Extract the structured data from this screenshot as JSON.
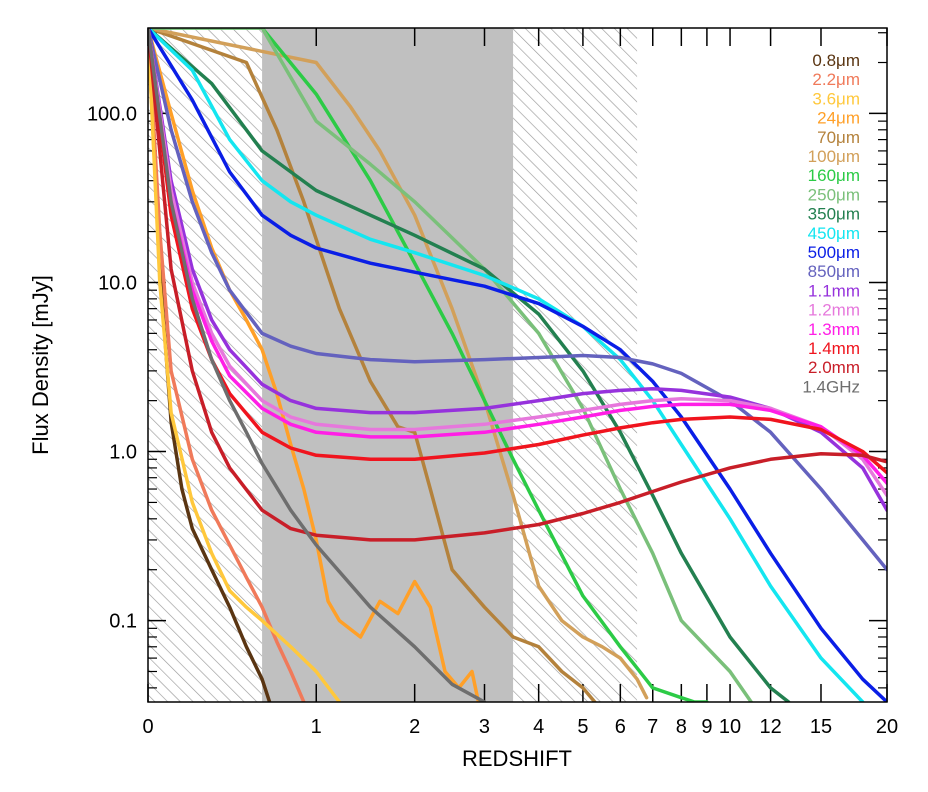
{
  "chart_data": {
    "type": "line",
    "xlabel": "REDSHIFT",
    "ylabel": "Flux Density [mJy]",
    "xscale": "log(1+z)",
    "yscale": "log",
    "xlim": [
      0,
      20
    ],
    "ylim": [
      0.033,
      320
    ],
    "x_ticks": [
      0,
      1,
      2,
      3,
      4,
      5,
      6,
      7,
      8,
      9,
      10,
      12,
      15,
      20
    ],
    "x_tick_labels": [
      "0",
      "1",
      "2",
      "3",
      "4",
      "5",
      "6",
      "7",
      "8",
      "9",
      "10",
      "12",
      "15",
      "20"
    ],
    "y_ticks": [
      0.1,
      1.0,
      10.0,
      100.0
    ],
    "y_tick_labels": [
      "0.1",
      "1.0",
      "10.0",
      "100.0"
    ],
    "shaded_regions": [
      {
        "style": "hatched",
        "z_range": [
          0,
          0.6
        ]
      },
      {
        "style": "solid-gray",
        "z_range": [
          0.6,
          3.5
        ]
      },
      {
        "style": "hatched",
        "z_range": [
          3.5,
          6.5
        ]
      }
    ],
    "legend_position": "top-right",
    "series": [
      {
        "name": "0.8μm",
        "color": "#5a3512",
        "x": [
          0,
          0.05,
          0.1,
          0.15,
          0.2,
          0.3,
          0.4,
          0.5,
          0.6,
          0.65
        ],
        "y": [
          320,
          12,
          1.5,
          0.6,
          0.35,
          0.2,
          0.12,
          0.07,
          0.045,
          0.033
        ]
      },
      {
        "name": "2.2μm",
        "color": "#f07a5a",
        "x": [
          0,
          0.05,
          0.1,
          0.2,
          0.3,
          0.4,
          0.5,
          0.6,
          0.7,
          0.8,
          0.9
        ],
        "y": [
          320,
          20,
          3,
          0.9,
          0.45,
          0.28,
          0.18,
          0.12,
          0.075,
          0.05,
          0.033
        ]
      },
      {
        "name": "3.6μm",
        "color": "#ffc83c",
        "x": [
          0,
          0.05,
          0.1,
          0.2,
          0.3,
          0.4,
          0.5,
          0.6,
          0.8,
          1.0,
          1.2
        ],
        "y": [
          320,
          10,
          1.7,
          0.5,
          0.25,
          0.15,
          0.12,
          0.1,
          0.07,
          0.05,
          0.033
        ]
      },
      {
        "name": "24μm",
        "color": "#ffa028",
        "x": [
          0,
          0.1,
          0.2,
          0.3,
          0.4,
          0.5,
          0.6,
          0.7,
          0.8,
          0.9,
          1.0,
          1.1,
          1.2,
          1.4,
          1.6,
          1.8,
          2.0,
          2.2,
          2.4,
          2.6,
          2.8,
          2.9
        ],
        "y": [
          320,
          100,
          35,
          16,
          9,
          6,
          4,
          2.2,
          1.1,
          0.6,
          0.3,
          0.13,
          0.1,
          0.08,
          0.13,
          0.11,
          0.17,
          0.12,
          0.05,
          0.04,
          0.05,
          0.033
        ]
      },
      {
        "name": "70μm",
        "color": "#b4823c",
        "x": [
          0,
          0.5,
          0.7,
          0.9,
          1.0,
          1.2,
          1.5,
          1.8,
          2.0,
          2.2,
          2.5,
          3.0,
          3.5,
          4.0,
          4.5,
          5.0,
          5.3
        ],
        "y": [
          320,
          200,
          80,
          30,
          18,
          7,
          2.6,
          1.4,
          1.3,
          0.6,
          0.2,
          0.12,
          0.08,
          0.07,
          0.05,
          0.04,
          0.033
        ]
      },
      {
        "name": "100μm",
        "color": "#d2a05a",
        "x": [
          0,
          1.0,
          1.3,
          1.6,
          2.0,
          2.5,
          3.0,
          3.5,
          4.0,
          4.5,
          5.0,
          5.5,
          6.0,
          6.5,
          6.8
        ],
        "y": [
          320,
          200,
          110,
          60,
          25,
          7,
          2.0,
          0.55,
          0.16,
          0.1,
          0.08,
          0.07,
          0.06,
          0.045,
          0.035
        ]
      },
      {
        "name": "160μm",
        "color": "#2ccb46",
        "x": [
          0,
          0.6,
          1.0,
          1.5,
          2.0,
          2.5,
          3.0,
          3.5,
          4.0,
          5.0,
          6.0,
          7.0,
          8.0,
          8.5,
          9.0
        ],
        "y": [
          320,
          320,
          130,
          40,
          13,
          5,
          2,
          0.9,
          0.45,
          0.14,
          0.07,
          0.04,
          0.035,
          0.033,
          0.033
        ]
      },
      {
        "name": "250μm",
        "color": "#7ac07a",
        "x": [
          0,
          0.6,
          1.0,
          1.5,
          2.0,
          3.0,
          4.0,
          5.0,
          6.0,
          7.0,
          8.0,
          10.0,
          11.0
        ],
        "y": [
          320,
          320,
          90,
          50,
          30,
          12,
          5,
          1.8,
          0.6,
          0.25,
          0.1,
          0.05,
          0.033
        ]
      },
      {
        "name": "350μm",
        "color": "#238050",
        "x": [
          0,
          0.3,
          0.6,
          1.0,
          1.5,
          2.0,
          3.0,
          4.0,
          5.0,
          6.0,
          7.0,
          8.0,
          10.0,
          12.0,
          13.0
        ],
        "y": [
          320,
          150,
          60,
          35,
          25,
          19,
          12,
          6.5,
          3.0,
          1.3,
          0.55,
          0.25,
          0.08,
          0.04,
          0.033
        ]
      },
      {
        "name": "450μm",
        "color": "#14e6f0",
        "x": [
          0,
          0.2,
          0.4,
          0.6,
          0.8,
          1.0,
          1.5,
          2.0,
          3.0,
          4.0,
          5.0,
          6.0,
          7.0,
          8.0,
          10.0,
          12.0,
          15.0,
          18.0
        ],
        "y": [
          320,
          180,
          70,
          40,
          30,
          25,
          18,
          15,
          11,
          8,
          5.5,
          3.5,
          2.0,
          1.1,
          0.4,
          0.16,
          0.06,
          0.033
        ]
      },
      {
        "name": "500μm",
        "color": "#0a1ee6",
        "x": [
          0,
          0.2,
          0.4,
          0.6,
          0.8,
          1.0,
          1.5,
          2.0,
          3.0,
          4.0,
          5.0,
          6.0,
          7.0,
          8.0,
          10.0,
          12.0,
          15.0,
          18.0,
          20.0
        ],
        "y": [
          320,
          120,
          45,
          25,
          19,
          16,
          13,
          11.5,
          9.5,
          7.5,
          5.5,
          4.0,
          2.6,
          1.6,
          0.6,
          0.25,
          0.09,
          0.045,
          0.033
        ]
      },
      {
        "name": "850μm",
        "color": "#6462be",
        "x": [
          0,
          0.1,
          0.2,
          0.3,
          0.4,
          0.6,
          0.8,
          1.0,
          1.5,
          2.0,
          3.0,
          4.0,
          5.0,
          6.0,
          7.0,
          8.0,
          10.0,
          12.0,
          15.0,
          18.0,
          20.0
        ],
        "y": [
          320,
          80,
          30,
          15,
          9,
          5,
          4.2,
          3.8,
          3.5,
          3.4,
          3.5,
          3.6,
          3.7,
          3.6,
          3.3,
          2.9,
          2.0,
          1.3,
          0.6,
          0.3,
          0.2
        ]
      },
      {
        "name": "1.1mm",
        "color": "#9632dc",
        "x": [
          0,
          0.1,
          0.2,
          0.3,
          0.4,
          0.6,
          0.8,
          1.0,
          1.5,
          2.0,
          3.0,
          4.0,
          5.0,
          6.0,
          7.0,
          8.0,
          10.0,
          12.0,
          15.0,
          18.0,
          20.0
        ],
        "y": [
          320,
          40,
          12,
          6,
          4,
          2.5,
          2.0,
          1.8,
          1.7,
          1.7,
          1.8,
          2.0,
          2.2,
          2.3,
          2.35,
          2.3,
          2.1,
          1.8,
          1.3,
          0.8,
          0.45
        ]
      },
      {
        "name": "1.2mm",
        "color": "#e678dc",
        "x": [
          0,
          0.1,
          0.2,
          0.3,
          0.4,
          0.6,
          0.8,
          1.0,
          1.5,
          2.0,
          3.0,
          4.0,
          5.0,
          6.0,
          7.0,
          8.0,
          10.0,
          12.0,
          15.0,
          18.0,
          20.0
        ],
        "y": [
          320,
          35,
          10,
          5,
          3.2,
          2.0,
          1.6,
          1.45,
          1.35,
          1.35,
          1.45,
          1.6,
          1.75,
          1.9,
          2.0,
          2.05,
          2.0,
          1.8,
          1.4,
          0.9,
          0.55
        ]
      },
      {
        "name": "1.3mm",
        "color": "#ff1ee6",
        "x": [
          0,
          0.1,
          0.2,
          0.3,
          0.4,
          0.6,
          0.8,
          1.0,
          1.5,
          2.0,
          3.0,
          4.0,
          5.0,
          6.0,
          7.0,
          8.0,
          10.0,
          12.0,
          15.0,
          18.0,
          20.0
        ],
        "y": [
          320,
          30,
          9,
          4.5,
          2.8,
          1.8,
          1.45,
          1.3,
          1.22,
          1.22,
          1.3,
          1.45,
          1.6,
          1.75,
          1.85,
          1.9,
          1.9,
          1.75,
          1.4,
          0.95,
          0.65
        ]
      },
      {
        "name": "1.4mm",
        "color": "#f0141e",
        "x": [
          0,
          0.1,
          0.2,
          0.3,
          0.4,
          0.6,
          0.8,
          1.0,
          1.5,
          2.0,
          3.0,
          4.0,
          5.0,
          6.0,
          7.0,
          8.0,
          10.0,
          12.0,
          15.0,
          18.0,
          20.0
        ],
        "y": [
          320,
          25,
          7,
          3.5,
          2.2,
          1.3,
          1.05,
          0.95,
          0.9,
          0.9,
          0.98,
          1.1,
          1.25,
          1.38,
          1.48,
          1.55,
          1.6,
          1.55,
          1.35,
          1.0,
          0.75
        ]
      },
      {
        "name": "2.0mm",
        "color": "#c81e28",
        "x": [
          0,
          0.1,
          0.2,
          0.3,
          0.4,
          0.6,
          0.8,
          1.0,
          1.5,
          2.0,
          3.0,
          4.0,
          5.0,
          6.0,
          7.0,
          8.0,
          10.0,
          12.0,
          15.0,
          18.0,
          20.0
        ],
        "y": [
          320,
          12,
          3,
          1.3,
          0.8,
          0.45,
          0.35,
          0.32,
          0.3,
          0.3,
          0.33,
          0.37,
          0.43,
          0.5,
          0.58,
          0.66,
          0.8,
          0.9,
          0.97,
          0.95,
          0.87
        ]
      },
      {
        "name": "1.4GHz",
        "color": "#6e6e6e",
        "x": [
          0,
          0.1,
          0.2,
          0.3,
          0.4,
          0.5,
          0.6,
          0.8,
          1.0,
          1.5,
          2.0,
          2.5,
          3.0
        ],
        "y": [
          320,
          30,
          8,
          3.5,
          2.0,
          1.3,
          0.85,
          0.45,
          0.28,
          0.12,
          0.07,
          0.042,
          0.033
        ]
      }
    ]
  }
}
